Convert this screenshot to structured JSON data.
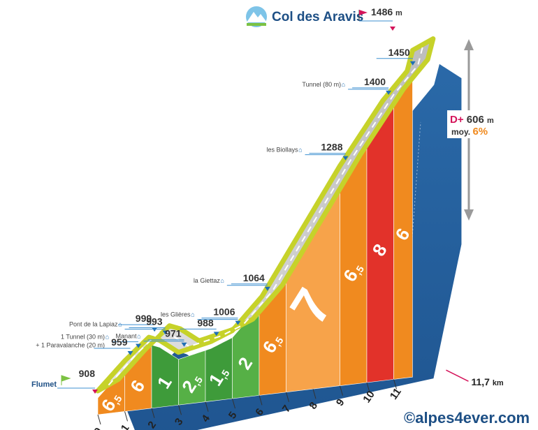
{
  "chart_data": {
    "type": "area",
    "title": "Col des Aravis",
    "summit_altitude": "1486",
    "altitude_unit": "m",
    "start_label": "Flumet",
    "start_altitude": "908",
    "distance_total": "11,7",
    "distance_unit": "km",
    "elevation_gain_label": "D+",
    "elevation_gain": "606",
    "elevation_gain_unit": "m",
    "average_label": "moy.",
    "average_gradient": "6%",
    "x_ticks": [
      "0",
      "1",
      "2",
      "3",
      "4",
      "5",
      "6",
      "7",
      "8",
      "9",
      "10",
      "11"
    ],
    "segments": [
      {
        "km_start": 0,
        "km_end": 1,
        "gradient": "6,5",
        "color": "#f08a1f"
      },
      {
        "km_start": 1,
        "km_end": 2,
        "gradient": "6",
        "color": "#f08a1f"
      },
      {
        "km_start": 2,
        "km_end": 3,
        "gradient": "1",
        "color": "#3e9b3a"
      },
      {
        "km_start": 3,
        "km_end": 4,
        "gradient": "2,5",
        "color": "#56b046"
      },
      {
        "km_start": 4,
        "km_end": 5,
        "gradient": "1,5",
        "color": "#3e9b3a"
      },
      {
        "km_start": 5,
        "km_end": 6,
        "gradient": "2",
        "color": "#56b046"
      },
      {
        "km_start": 6,
        "km_end": 7,
        "gradient": "6,5",
        "color": "#f08a1f"
      },
      {
        "km_start": 7,
        "km_end": 9,
        "gradient": "7",
        "color": "#f7a34a"
      },
      {
        "km_start": 9,
        "km_end": 10,
        "gradient": "6,5",
        "color": "#f08a1f"
      },
      {
        "km_start": 10,
        "km_end": 11,
        "gradient": "8",
        "color": "#e2322a"
      },
      {
        "km_start": 11,
        "km_end": 11.7,
        "gradient": "6",
        "color": "#f08a1f"
      }
    ],
    "profile": [
      {
        "km": 0,
        "alt": 908
      },
      {
        "km": 1,
        "alt": 959
      },
      {
        "km": 1.9,
        "alt": 999
      },
      {
        "km": 2.3,
        "alt": 993
      },
      {
        "km": 3.0,
        "alt": 971
      },
      {
        "km": 4.2,
        "alt": 988
      },
      {
        "km": 5.0,
        "alt": 1006
      },
      {
        "km": 6.1,
        "alt": 1064
      },
      {
        "km": 9.0,
        "alt": 1288
      },
      {
        "km": 10.6,
        "alt": 1400
      },
      {
        "km": 11.5,
        "alt": 1450
      },
      {
        "km": 11.7,
        "alt": 1486
      }
    ],
    "waypoints": [
      {
        "label": "1 Tunnel (30 m)",
        "label2": "+ 1 Paravalanche (20 m)",
        "alt": "",
        "icon": "tunnel-icon"
      },
      {
        "label": "",
        "alt": "959"
      },
      {
        "label": "",
        "alt": "999"
      },
      {
        "label": "Pont de la Lapiaz",
        "alt": "993",
        "icon": "bridge-icon"
      },
      {
        "label": "Manant",
        "alt": "971",
        "icon": "village-icon"
      },
      {
        "label": "",
        "alt": "988"
      },
      {
        "label": "les Glières",
        "alt": "1006",
        "icon": "village-icon"
      },
      {
        "label": "la Giettaz",
        "alt": "1064",
        "icon": "church-icon"
      },
      {
        "label": "les Biollays",
        "alt": "1288",
        "icon": "village-icon"
      },
      {
        "label": "Tunnel (80 m)",
        "alt": "1400",
        "icon": "tunnel-icon"
      },
      {
        "label": "",
        "alt": "1450"
      }
    ],
    "colors": {
      "road": "#cfcfcf",
      "road_edge": "#c6d22a",
      "wall": "#245f9c",
      "wall_dark": "#1d4f85",
      "accent": "#d4145a",
      "arrow": "#9a9a9a"
    }
  },
  "watermark": "©alpes4ever.com"
}
